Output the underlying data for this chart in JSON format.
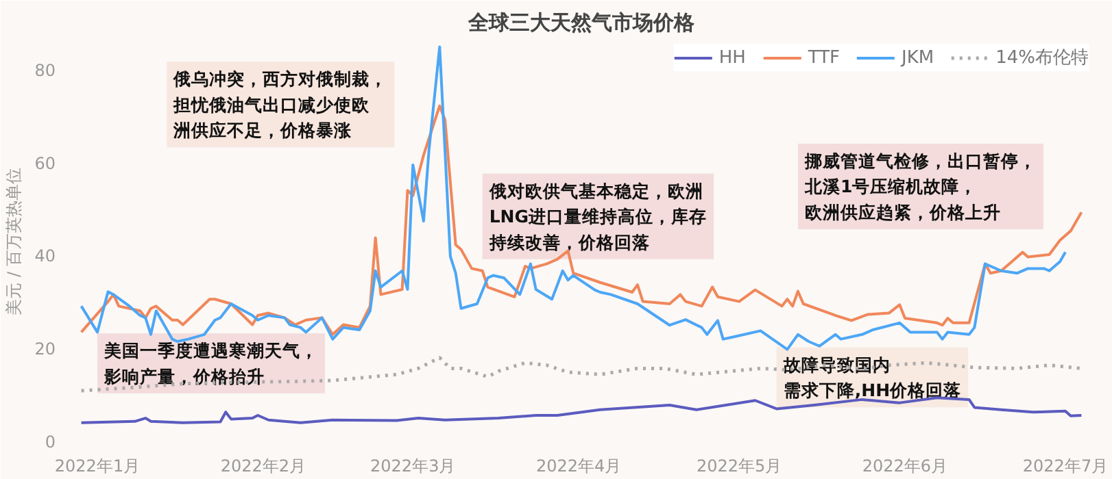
{
  "chart_data": {
    "type": "line",
    "title": "全球三大天然气市场价格",
    "ylabel": "美元 / 百万英热单位",
    "xlim": [
      "2021-12-27",
      "2022-07-06"
    ],
    "ylim": [
      0,
      86
    ],
    "xticks": [
      {
        "value": "2022-01-01",
        "label": "2022年1月"
      },
      {
        "value": "2022-02-01",
        "label": "2022年2月"
      },
      {
        "value": "2022-03-01",
        "label": "2022年3月"
      },
      {
        "value": "2022-04-01",
        "label": "2022年4月"
      },
      {
        "value": "2022-05-01",
        "label": "2022年5月"
      },
      {
        "value": "2022-06-01",
        "label": "2022年6月"
      },
      {
        "value": "2022-07-01",
        "label": "2022年7月"
      }
    ],
    "yticks": [
      0,
      20,
      40,
      60,
      80
    ],
    "grid": false,
    "legend": "top right",
    "series": [
      {
        "name": "HH",
        "color": "#5b5bbf",
        "x": [
          "2021-12-29",
          "2022-01-08",
          "2022-01-10",
          "2022-01-11",
          "2022-01-17",
          "2022-01-24",
          "2022-01-25",
          "2022-01-26",
          "2022-01-30",
          "2022-01-31",
          "2022-02-02",
          "2022-02-08",
          "2022-02-14",
          "2022-02-26",
          "2022-03-02",
          "2022-03-07",
          "2022-03-17",
          "2022-03-24",
          "2022-03-28",
          "2022-04-05",
          "2022-04-18",
          "2022-04-23",
          "2022-05-04",
          "2022-05-08",
          "2022-05-15",
          "2022-05-24",
          "2022-05-31",
          "2022-06-07",
          "2022-06-13",
          "2022-06-14",
          "2022-06-19",
          "2022-06-25",
          "2022-07-01",
          "2022-07-02",
          "2022-07-04"
        ],
        "values": [
          4.0,
          4.3,
          5.0,
          4.3,
          4.0,
          4.2,
          6.3,
          4.8,
          5.0,
          5.6,
          4.6,
          4.0,
          4.6,
          4.5,
          5.0,
          4.6,
          5.0,
          5.6,
          5.6,
          6.8,
          7.8,
          6.8,
          8.8,
          7.0,
          7.8,
          9.0,
          8.3,
          9.4,
          9.0,
          7.3,
          6.8,
          6.3,
          6.5,
          5.5,
          5.6
        ]
      },
      {
        "name": "TTF",
        "color": "#f0875a",
        "x": [
          "2021-12-29",
          "2022-01-03",
          "2022-01-04",
          "2022-01-05",
          "2022-01-09",
          "2022-01-10",
          "2022-01-11",
          "2022-01-12",
          "2022-01-15",
          "2022-01-16",
          "2022-01-17",
          "2022-01-22",
          "2022-01-23",
          "2022-01-26",
          "2022-01-30",
          "2022-01-31",
          "2022-02-02",
          "2022-02-05",
          "2022-02-07",
          "2022-02-09",
          "2022-02-12",
          "2022-02-14",
          "2022-02-16",
          "2022-02-19",
          "2022-02-21",
          "2022-02-22",
          "2022-02-23",
          "2022-02-27",
          "2022-02-28",
          "2022-03-01",
          "2022-03-03",
          "2022-03-06",
          "2022-03-07",
          "2022-03-09",
          "2022-03-10",
          "2022-03-12",
          "2022-03-14",
          "2022-03-15",
          "2022-03-20",
          "2022-03-22",
          "2022-03-23",
          "2022-03-26",
          "2022-03-28",
          "2022-03-30",
          "2022-03-31",
          "2022-04-05",
          "2022-04-11",
          "2022-04-12",
          "2022-04-13",
          "2022-04-18",
          "2022-04-20",
          "2022-04-21",
          "2022-04-24",
          "2022-04-26",
          "2022-04-27",
          "2022-05-01",
          "2022-05-04",
          "2022-05-09",
          "2022-05-10",
          "2022-05-11",
          "2022-05-12",
          "2022-05-13",
          "2022-05-19",
          "2022-05-22",
          "2022-05-25",
          "2022-05-29",
          "2022-05-31",
          "2022-06-01",
          "2022-06-07",
          "2022-06-08",
          "2022-06-09",
          "2022-06-10",
          "2022-06-13",
          "2022-06-16",
          "2022-06-17",
          "2022-06-19",
          "2022-06-21",
          "2022-06-23",
          "2022-06-24",
          "2022-06-28",
          "2022-06-30",
          "2022-07-02",
          "2022-07-04"
        ],
        "values": [
          23.5,
          30.1,
          31.6,
          29.1,
          28.1,
          26.6,
          28.6,
          29.1,
          26.1,
          26.1,
          25.1,
          30.6,
          30.6,
          29.6,
          25.1,
          27.1,
          27.6,
          26.6,
          25.1,
          26.1,
          26.6,
          23.0,
          25.1,
          24.5,
          29.1,
          43.8,
          31.6,
          32.7,
          54.0,
          52.9,
          61.6,
          72.2,
          69.2,
          42.3,
          41.3,
          37.2,
          36.7,
          33.2,
          31.1,
          37.7,
          37.2,
          38.2,
          39.2,
          41.0,
          36.2,
          34.2,
          32.1,
          33.7,
          30.1,
          29.6,
          31.6,
          30.1,
          29.1,
          33.2,
          31.1,
          30.1,
          32.6,
          29.1,
          30.6,
          29.1,
          32.3,
          29.6,
          27.1,
          26.0,
          27.3,
          27.6,
          29.4,
          26.5,
          25.5,
          25.0,
          26.5,
          25.5,
          25.5,
          38.2,
          36.2,
          36.7,
          38.7,
          40.7,
          39.7,
          40.2,
          43.3,
          45.3,
          49.3
        ]
      },
      {
        "name": "JKM",
        "color": "#4da6f5",
        "x": [
          "2021-12-29",
          "2022-01-01",
          "2022-01-03",
          "2022-01-04",
          "2022-01-07",
          "2022-01-09",
          "2022-01-10",
          "2022-01-11",
          "2022-01-12",
          "2022-01-15",
          "2022-01-16",
          "2022-01-18",
          "2022-01-21",
          "2022-01-23",
          "2022-01-24",
          "2022-01-26",
          "2022-01-30",
          "2022-01-31",
          "2022-02-02",
          "2022-02-05",
          "2022-02-06",
          "2022-02-08",
          "2022-02-09",
          "2022-02-12",
          "2022-02-14",
          "2022-02-16",
          "2022-02-19",
          "2022-02-21",
          "2022-02-22",
          "2022-02-23",
          "2022-02-27",
          "2022-02-28",
          "2022-03-01",
          "2022-03-03",
          "2022-03-04",
          "2022-03-06",
          "2022-03-07",
          "2022-03-08",
          "2022-03-09",
          "2022-03-10",
          "2022-03-13",
          "2022-03-15",
          "2022-03-16",
          "2022-03-18",
          "2022-03-21",
          "2022-03-23",
          "2022-03-24",
          "2022-03-27",
          "2022-03-29",
          "2022-03-30",
          "2022-03-31",
          "2022-04-04",
          "2022-04-05",
          "2022-04-07",
          "2022-04-12",
          "2022-04-18",
          "2022-04-21",
          "2022-04-24",
          "2022-04-25",
          "2022-04-27",
          "2022-04-28",
          "2022-04-30",
          "2022-05-05",
          "2022-05-10",
          "2022-05-12",
          "2022-05-14",
          "2022-05-16",
          "2022-05-19",
          "2022-05-20",
          "2022-05-24",
          "2022-05-26",
          "2022-05-31",
          "2022-06-02",
          "2022-06-07",
          "2022-06-08",
          "2022-06-09",
          "2022-06-13",
          "2022-06-14",
          "2022-06-16",
          "2022-06-19",
          "2022-06-22",
          "2022-06-24",
          "2022-06-27",
          "2022-06-28",
          "2022-06-30",
          "2022-07-01"
        ],
        "values": [
          29.1,
          23.5,
          32.2,
          31.6,
          29.1,
          27.1,
          26.6,
          23.0,
          28.1,
          22.0,
          21.5,
          22.0,
          23.0,
          26.1,
          26.6,
          29.6,
          27.1,
          26.1,
          27.1,
          26.6,
          25.1,
          24.5,
          23.5,
          26.6,
          22.0,
          24.5,
          24.0,
          28.1,
          36.7,
          33.2,
          36.7,
          32.7,
          59.5,
          47.4,
          62.6,
          84.9,
          62.6,
          39.8,
          36.2,
          28.6,
          29.6,
          35.2,
          35.7,
          35.2,
          31.6,
          38.2,
          32.7,
          30.6,
          36.7,
          34.7,
          35.7,
          32.6,
          32.1,
          31.6,
          29.6,
          25.0,
          26.2,
          24.5,
          23.0,
          26.0,
          22.0,
          22.5,
          23.8,
          19.8,
          23.0,
          21.5,
          20.5,
          23.0,
          22.0,
          23.0,
          24.0,
          25.5,
          23.5,
          23.5,
          22.0,
          23.5,
          23.0,
          24.5,
          38.2,
          36.7,
          36.2,
          37.2,
          37.2,
          36.7,
          38.7,
          40.7
        ]
      },
      {
        "name": "14%布伦特",
        "color": "#aaaaaa",
        "line_style": "dotted",
        "x": [
          "2021-12-29",
          "2022-01-09",
          "2022-01-17",
          "2022-01-26",
          "2022-02-07",
          "2022-02-14",
          "2022-02-26",
          "2022-03-02",
          "2022-03-06",
          "2022-03-08",
          "2022-03-10",
          "2022-03-15",
          "2022-03-17",
          "2022-03-22",
          "2022-03-26",
          "2022-03-30",
          "2022-04-05",
          "2022-04-12",
          "2022-04-17",
          "2022-04-23",
          "2022-05-05",
          "2022-05-10",
          "2022-05-17",
          "2022-05-24",
          "2022-05-29",
          "2022-06-05",
          "2022-06-14",
          "2022-06-22",
          "2022-06-28",
          "2022-07-04"
        ],
        "values": [
          10.9,
          11.7,
          12.4,
          12.7,
          12.9,
          13.1,
          14.4,
          15.7,
          18.0,
          15.7,
          15.7,
          13.9,
          15.1,
          16.9,
          16.4,
          14.9,
          14.4,
          15.7,
          15.7,
          14.4,
          15.7,
          15.4,
          16.4,
          15.6,
          16.4,
          16.9,
          15.9,
          15.7,
          16.4,
          15.7
        ]
      }
    ],
    "annotations": [
      "俄乌冲突，西方对俄制裁，担忧俄油气出口减少使欧洲供应不足，价格暴涨",
      "俄对欧供气基本稳定，欧洲LNG进口量维持高位，库存持续改善，价格回落",
      "挪威管道气检修，出口暂停，北溪1号压缩机故障，欧洲供应趋紧，价格上升",
      "美国一季度遭遇寒潮天气，影响产量，价格抬升",
      "故障导致国内需求下降,HH价格回落"
    ]
  }
}
